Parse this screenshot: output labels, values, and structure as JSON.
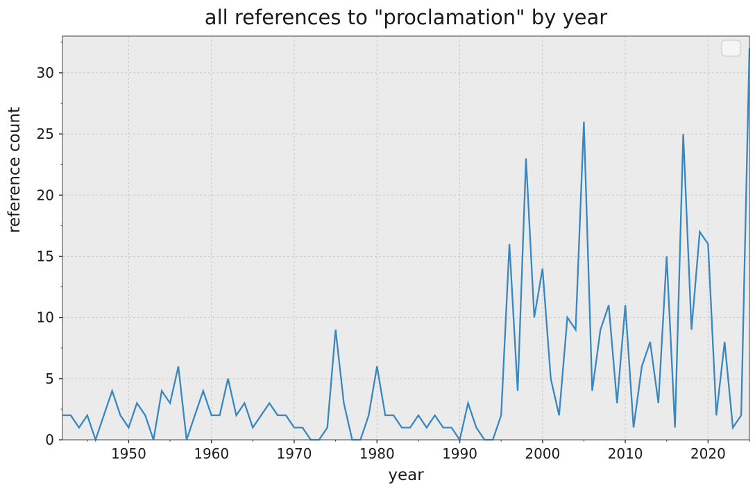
{
  "title": "all references to \"proclamation\" by year",
  "axis": {
    "xlabel": "year",
    "ylabel": "reference count",
    "x_ticks": [
      1950,
      1960,
      1970,
      1980,
      1990,
      2000,
      2010,
      2020
    ],
    "y_ticks": [
      0,
      5,
      10,
      15,
      20,
      25,
      30
    ]
  },
  "legend": {
    "present": true,
    "entries": [],
    "note": "empty legend box, top-right"
  },
  "colors": {
    "line": "#3787C1",
    "plot_background": "#ebebeb",
    "grid": "#c9c9c9",
    "spine": "#5f5f5f",
    "tick": "#333333",
    "text": "#1a1a1a"
  },
  "chart_data": {
    "type": "line",
    "title": "all references to \"proclamation\" by year",
    "xlabel": "year",
    "ylabel": "reference count",
    "xlim": [
      1942,
      2025
    ],
    "ylim": [
      0,
      33
    ],
    "grid": true,
    "legend_position": "upper right (empty)",
    "x": [
      1942,
      1943,
      1944,
      1945,
      1946,
      1947,
      1948,
      1949,
      1950,
      1951,
      1952,
      1953,
      1954,
      1955,
      1956,
      1957,
      1958,
      1959,
      1960,
      1961,
      1962,
      1963,
      1964,
      1965,
      1966,
      1967,
      1968,
      1969,
      1970,
      1971,
      1972,
      1973,
      1974,
      1975,
      1976,
      1977,
      1978,
      1979,
      1980,
      1981,
      1982,
      1983,
      1984,
      1985,
      1986,
      1987,
      1988,
      1989,
      1990,
      1991,
      1992,
      1993,
      1994,
      1995,
      1996,
      1997,
      1998,
      1999,
      2000,
      2001,
      2002,
      2003,
      2004,
      2005,
      2006,
      2007,
      2008,
      2009,
      2010,
      2011,
      2012,
      2013,
      2014,
      2015,
      2016,
      2017,
      2018,
      2019,
      2020,
      2021,
      2022,
      2023,
      2024,
      2025
    ],
    "values": [
      2,
      2,
      1,
      2,
      0,
      2,
      4,
      2,
      1,
      3,
      2,
      0,
      4,
      3,
      6,
      0,
      2,
      4,
      2,
      2,
      5,
      2,
      3,
      1,
      2,
      3,
      2,
      2,
      1,
      1,
      0,
      0,
      1,
      9,
      3,
      0,
      0,
      2,
      6,
      2,
      2,
      1,
      1,
      2,
      1,
      2,
      1,
      1,
      0,
      3,
      1,
      0,
      0,
      2,
      16,
      4,
      23,
      10,
      14,
      5,
      2,
      10,
      9,
      26,
      4,
      9,
      11,
      3,
      11,
      1,
      6,
      8,
      3,
      15,
      1,
      25,
      9,
      17,
      16,
      2,
      8,
      1,
      2,
      32
    ]
  }
}
